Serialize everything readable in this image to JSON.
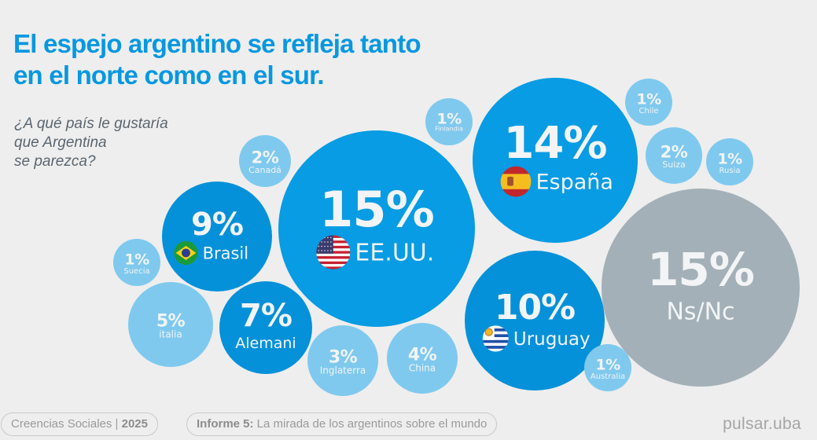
{
  "header": {
    "title_lines": [
      "El espejo argentino se refleja tanto",
      "en el norte como en el sur."
    ],
    "question_lines": [
      "¿A qué país le gustaría",
      "que Argentina",
      "se parezca?"
    ]
  },
  "footer": {
    "series_label": "Creencias Sociales | ",
    "series_year": "2025",
    "report_bold": "Informe 5:",
    "report_text": " La mirada de los argentinos sobre el mundo",
    "logo": "pulsar.uba"
  },
  "colors": {
    "background": "#eeeeee",
    "title": "#0798e0",
    "large_bubble": "#079ce3",
    "medium_bubble": "#0591d9",
    "small_bubble": "#7fc9ee",
    "nsnc_bubble": "#a3b0b7",
    "bubble_text": "#f2f4f5"
  },
  "chart_data": {
    "type": "bubble",
    "title": "El espejo argentino se refleja tanto en el norte como en el sur.",
    "subtitle": "¿A qué país le gustaría que Argentina se parezca?",
    "unit": "%",
    "items": [
      {
        "label": "EE.UU.",
        "value": 15,
        "display": "15%",
        "flag": "usa-flag",
        "tier": "large"
      },
      {
        "label": "España",
        "value": 14,
        "display": "14%",
        "flag": "spain-flag",
        "tier": "large"
      },
      {
        "label": "Uruguay",
        "value": 10,
        "display": "10%",
        "flag": "uruguay-flag",
        "tier": "medium"
      },
      {
        "label": "Brasil",
        "value": 9,
        "display": "9%",
        "flag": "brazil-flag",
        "tier": "medium"
      },
      {
        "label": "Alemani",
        "value": 7,
        "display": "7%",
        "flag": null,
        "tier": "medium"
      },
      {
        "label": "italia",
        "value": 5,
        "display": "5%",
        "flag": null,
        "tier": "small"
      },
      {
        "label": "China",
        "value": 4,
        "display": "4%",
        "flag": null,
        "tier": "small"
      },
      {
        "label": "Inglaterra",
        "value": 3,
        "display": "3%",
        "flag": null,
        "tier": "small"
      },
      {
        "label": "Canadá",
        "value": 2,
        "display": "2%",
        "flag": null,
        "tier": "small"
      },
      {
        "label": "Suiza",
        "value": 2,
        "display": "2%",
        "flag": null,
        "tier": "small"
      },
      {
        "label": "Finlandia",
        "value": 1,
        "display": "1%",
        "flag": null,
        "tier": "small"
      },
      {
        "label": "Chile",
        "value": 1,
        "display": "1%",
        "flag": null,
        "tier": "small"
      },
      {
        "label": "Rusia",
        "value": 1,
        "display": "1%",
        "flag": null,
        "tier": "small"
      },
      {
        "label": "Suecia",
        "value": 1,
        "display": "1%",
        "flag": null,
        "tier": "small"
      },
      {
        "label": "Australia",
        "value": 1,
        "display": "1%",
        "flag": null,
        "tier": "small"
      },
      {
        "label": "Ns/Nc",
        "value": 15,
        "display": "15%",
        "flag": null,
        "tier": "nsnc"
      }
    ]
  }
}
